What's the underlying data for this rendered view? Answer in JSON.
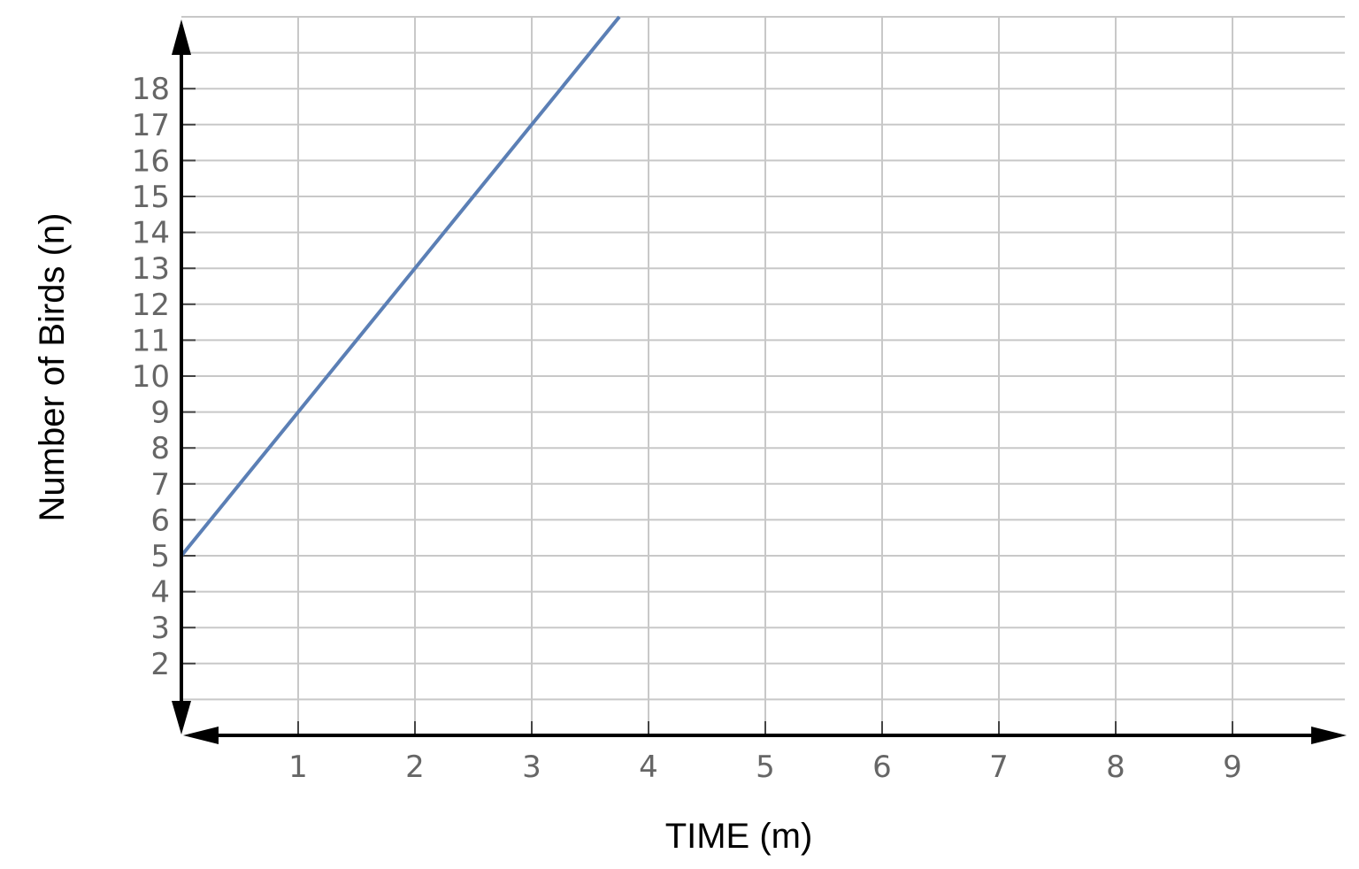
{
  "chart_data": {
    "type": "line",
    "title": "",
    "xlabel": "TIME (m)",
    "ylabel": "Number of Birds (n)",
    "xlim": [
      0,
      9.96
    ],
    "ylim": [
      0,
      20
    ],
    "grid": true,
    "x_ticks": [
      1,
      2,
      3,
      4,
      5,
      6,
      7,
      8,
      9
    ],
    "y_ticks": [
      2,
      3,
      4,
      5,
      6,
      7,
      8,
      9,
      10,
      11,
      12,
      13,
      14,
      15,
      16,
      17,
      18
    ],
    "series": [
      {
        "color": "#5b7fb5",
        "x": [
          0,
          1,
          2,
          3,
          3.75
        ],
        "y": [
          5,
          9,
          13,
          17,
          20
        ]
      }
    ],
    "colors": {
      "grid": "#c8c8c8",
      "axis": "#000000",
      "tick_label": "#666666"
    }
  }
}
